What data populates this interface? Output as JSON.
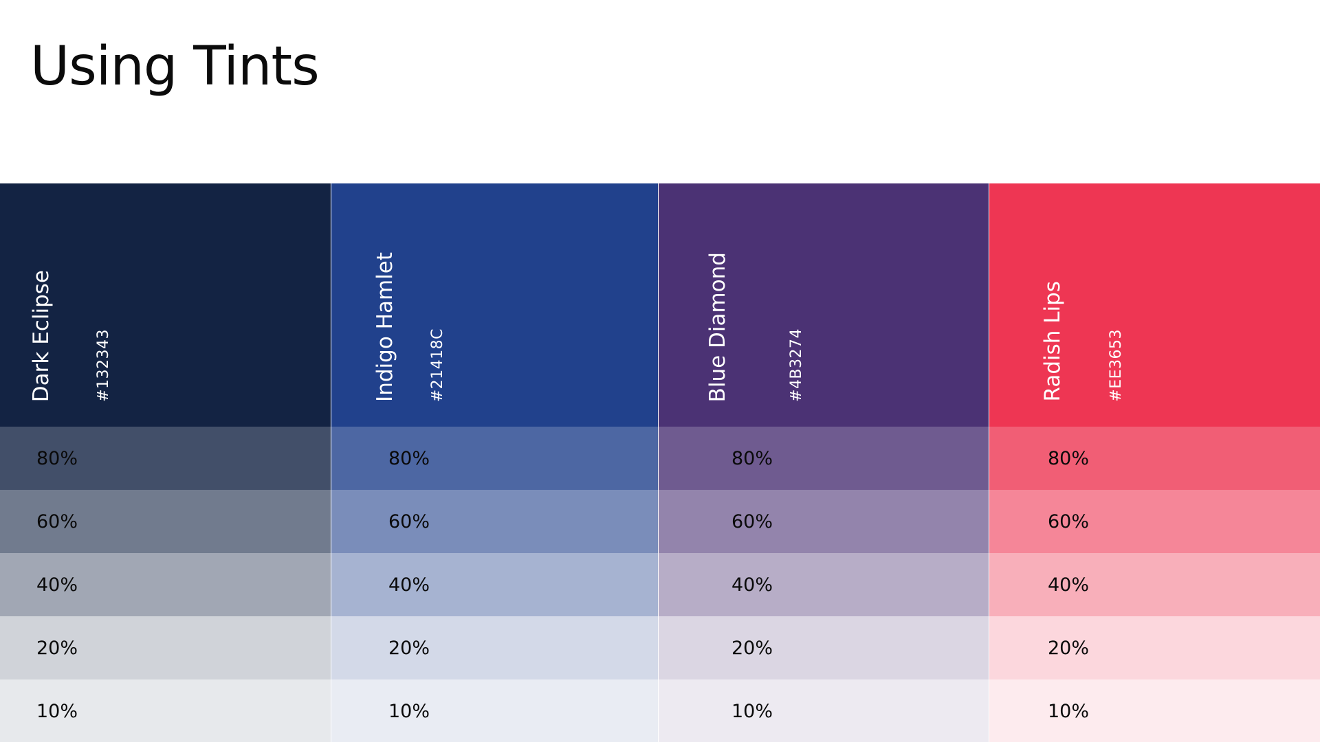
{
  "title": "Using Tints",
  "swatches": [
    {
      "name": "Dark Eclipse",
      "hex": "#132343",
      "base_color": "#132343",
      "tints": [
        {
          "label": "80%",
          "color": "#424F69"
        },
        {
          "label": "60%",
          "color": "#717B8E"
        },
        {
          "label": "40%",
          "color": "#A1A7B4"
        },
        {
          "label": "20%",
          "color": "#D0D3D9"
        },
        {
          "label": "10%",
          "color": "#E7E9EC"
        }
      ]
    },
    {
      "name": "Indigo Hamlet",
      "hex": "#21418C",
      "base_color": "#21418C",
      "tints": [
        {
          "label": "80%",
          "color": "#4D67A3"
        },
        {
          "label": "60%",
          "color": "#7A8DBA"
        },
        {
          "label": "40%",
          "color": "#A6B3D1"
        },
        {
          "label": "20%",
          "color": "#D3D9E8"
        },
        {
          "label": "10%",
          "color": "#E9ECF3"
        }
      ]
    },
    {
      "name": "Blue Diamond",
      "hex": "#4B3274",
      "base_color": "#4B3274",
      "tints": [
        {
          "label": "80%",
          "color": "#6F5B90"
        },
        {
          "label": "60%",
          "color": "#9384AC"
        },
        {
          "label": "40%",
          "color": "#B7ADC7"
        },
        {
          "label": "20%",
          "color": "#DBD6E3"
        },
        {
          "label": "10%",
          "color": "#EDEAF1"
        }
      ]
    },
    {
      "name": "Radish Lips",
      "hex": "#EE3653",
      "base_color": "#EE3653",
      "tints": [
        {
          "label": "80%",
          "color": "#F15E75"
        },
        {
          "label": "60%",
          "color": "#F58698"
        },
        {
          "label": "40%",
          "color": "#F8AFBA"
        },
        {
          "label": "20%",
          "color": "#FCD7DD"
        },
        {
          "label": "10%",
          "color": "#FDEBEE"
        }
      ]
    }
  ]
}
